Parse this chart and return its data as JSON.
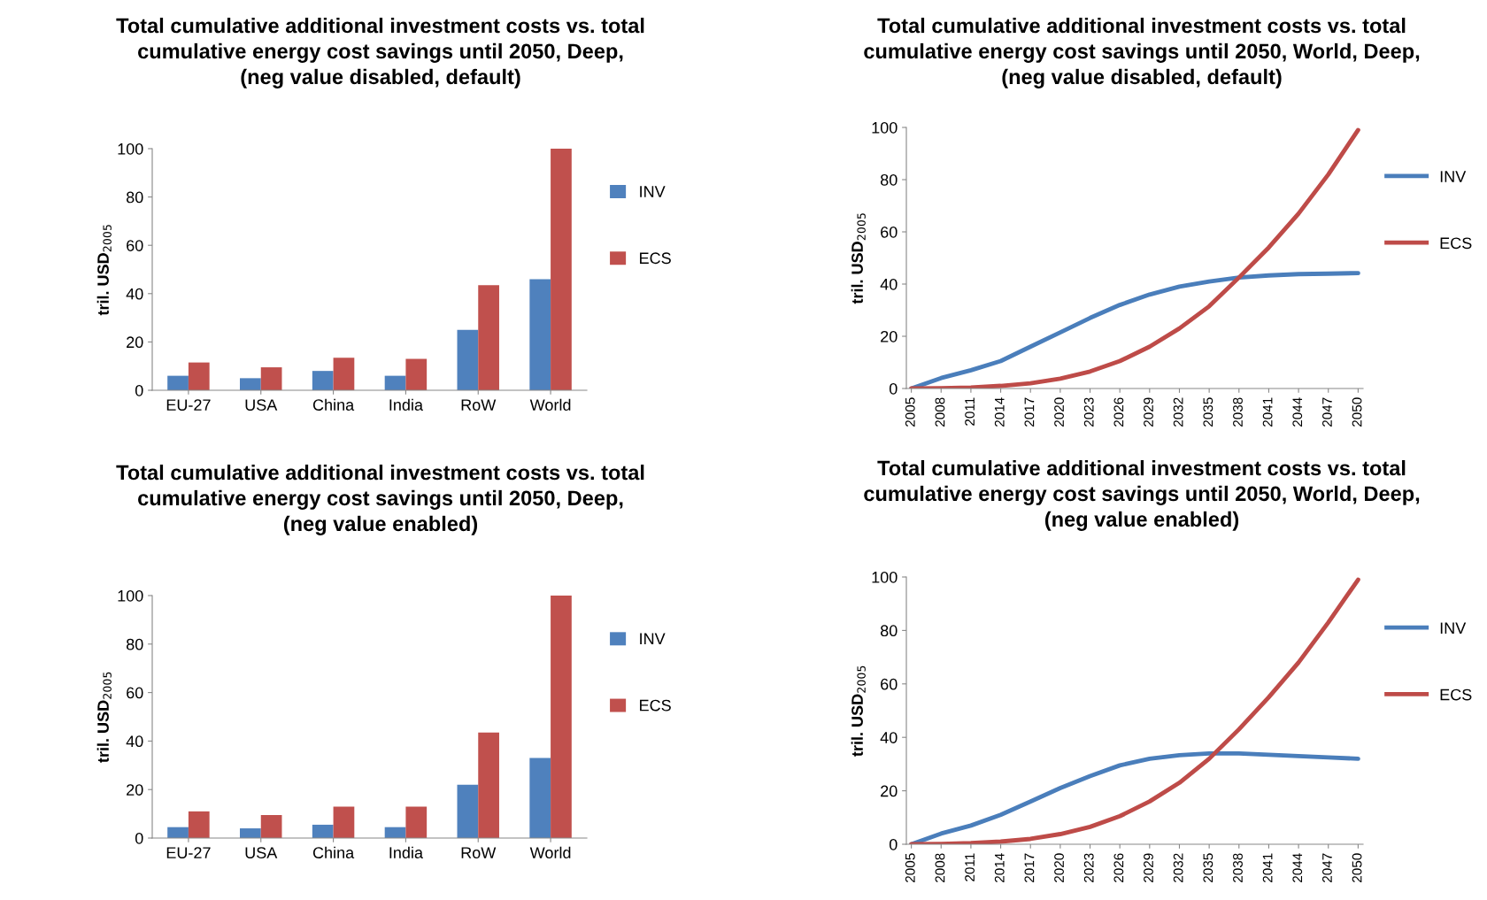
{
  "chart_data": [
    {
      "type": "bar",
      "title": "Total cumulative additional investment costs vs. total\ncumulative energy cost savings until 2050, Deep,\n(neg value disabled, default)",
      "ylabel": "tril. USD$_{2005}$",
      "categories": [
        "EU-27",
        "USA",
        "China",
        "India",
        "RoW",
        "World"
      ],
      "ylim": [
        0,
        100
      ],
      "yticks": [
        0,
        20,
        40,
        60,
        80,
        100
      ],
      "legend": "right",
      "series": [
        {
          "name": "INV",
          "color": "#4f81bd",
          "values": [
            6,
            5,
            8,
            6,
            25,
            46
          ]
        },
        {
          "name": "ECS",
          "color": "#c0504d",
          "values": [
            11.5,
            9.5,
            13.5,
            13,
            43.5,
            100
          ]
        }
      ]
    },
    {
      "type": "line",
      "title": "Total cumulative additional investment costs vs. total\ncumulative energy cost savings until 2050, World, Deep,\n(neg value disabled, default)",
      "ylabel": "tril. USD$_{2005}$",
      "x": [
        2005,
        2008,
        2011,
        2014,
        2017,
        2020,
        2023,
        2026,
        2029,
        2032,
        2035,
        2038,
        2041,
        2044,
        2047,
        2050
      ],
      "xlim": [
        2004.5,
        2050.5
      ],
      "xticks": [
        2005,
        2008,
        2011,
        2014,
        2017,
        2020,
        2023,
        2026,
        2029,
        2032,
        2035,
        2038,
        2041,
        2044,
        2047,
        2050
      ],
      "ylim": [
        0,
        100
      ],
      "yticks": [
        0,
        20,
        40,
        60,
        80,
        100
      ],
      "legend": "right",
      "series": [
        {
          "name": "INV",
          "color": "#4a7ebb",
          "values": [
            0,
            4,
            7,
            10.5,
            16,
            21.5,
            27,
            32,
            36,
            39,
            41,
            42.5,
            43.3,
            43.8,
            44,
            44.2
          ]
        },
        {
          "name": "ECS",
          "color": "#be4b48",
          "values": [
            0,
            0.1,
            0.4,
            1,
            2,
            3.8,
            6.5,
            10.5,
            16,
            23,
            31.5,
            42.5,
            54,
            67,
            82,
            99
          ]
        }
      ]
    },
    {
      "type": "bar",
      "title": "Total cumulative additional investment costs vs. total\ncumulative energy cost savings until 2050, Deep,\n(neg value enabled)",
      "ylabel": "tril. USD$_{2005}$",
      "categories": [
        "EU-27",
        "USA",
        "China",
        "India",
        "RoW",
        "World"
      ],
      "ylim": [
        0,
        100
      ],
      "yticks": [
        0,
        20,
        40,
        60,
        80,
        100
      ],
      "legend": "right",
      "series": [
        {
          "name": "INV",
          "color": "#4f81bd",
          "values": [
            4.5,
            4,
            5.5,
            4.5,
            22,
            33
          ]
        },
        {
          "name": "ECS",
          "color": "#c0504d",
          "values": [
            11,
            9.5,
            13,
            13,
            43.5,
            100
          ]
        }
      ]
    },
    {
      "type": "line",
      "title": "Total cumulative additional investment costs vs. total\ncumulative energy cost savings until 2050, World, Deep,\n(neg value enabled)",
      "ylabel": "tril. USD$_{2005}$",
      "x": [
        2005,
        2008,
        2011,
        2014,
        2017,
        2020,
        2023,
        2026,
        2029,
        2032,
        2035,
        2038,
        2041,
        2044,
        2047,
        2050
      ],
      "xlim": [
        2004.5,
        2050.5
      ],
      "xticks": [
        2005,
        2008,
        2011,
        2014,
        2017,
        2020,
        2023,
        2026,
        2029,
        2032,
        2035,
        2038,
        2041,
        2044,
        2047,
        2050
      ],
      "ylim": [
        0,
        100
      ],
      "yticks": [
        0,
        20,
        40,
        60,
        80,
        100
      ],
      "legend": "right",
      "series": [
        {
          "name": "INV",
          "color": "#4a7ebb",
          "values": [
            0,
            4,
            7,
            11,
            16,
            21,
            25.5,
            29.5,
            32,
            33.3,
            34,
            34,
            33.5,
            33,
            32.5,
            32
          ]
        },
        {
          "name": "ECS",
          "color": "#be4b48",
          "values": [
            0,
            0.1,
            0.4,
            1,
            2,
            3.8,
            6.5,
            10.5,
            16,
            23,
            32,
            43,
            55,
            68,
            83,
            99
          ]
        }
      ]
    }
  ]
}
